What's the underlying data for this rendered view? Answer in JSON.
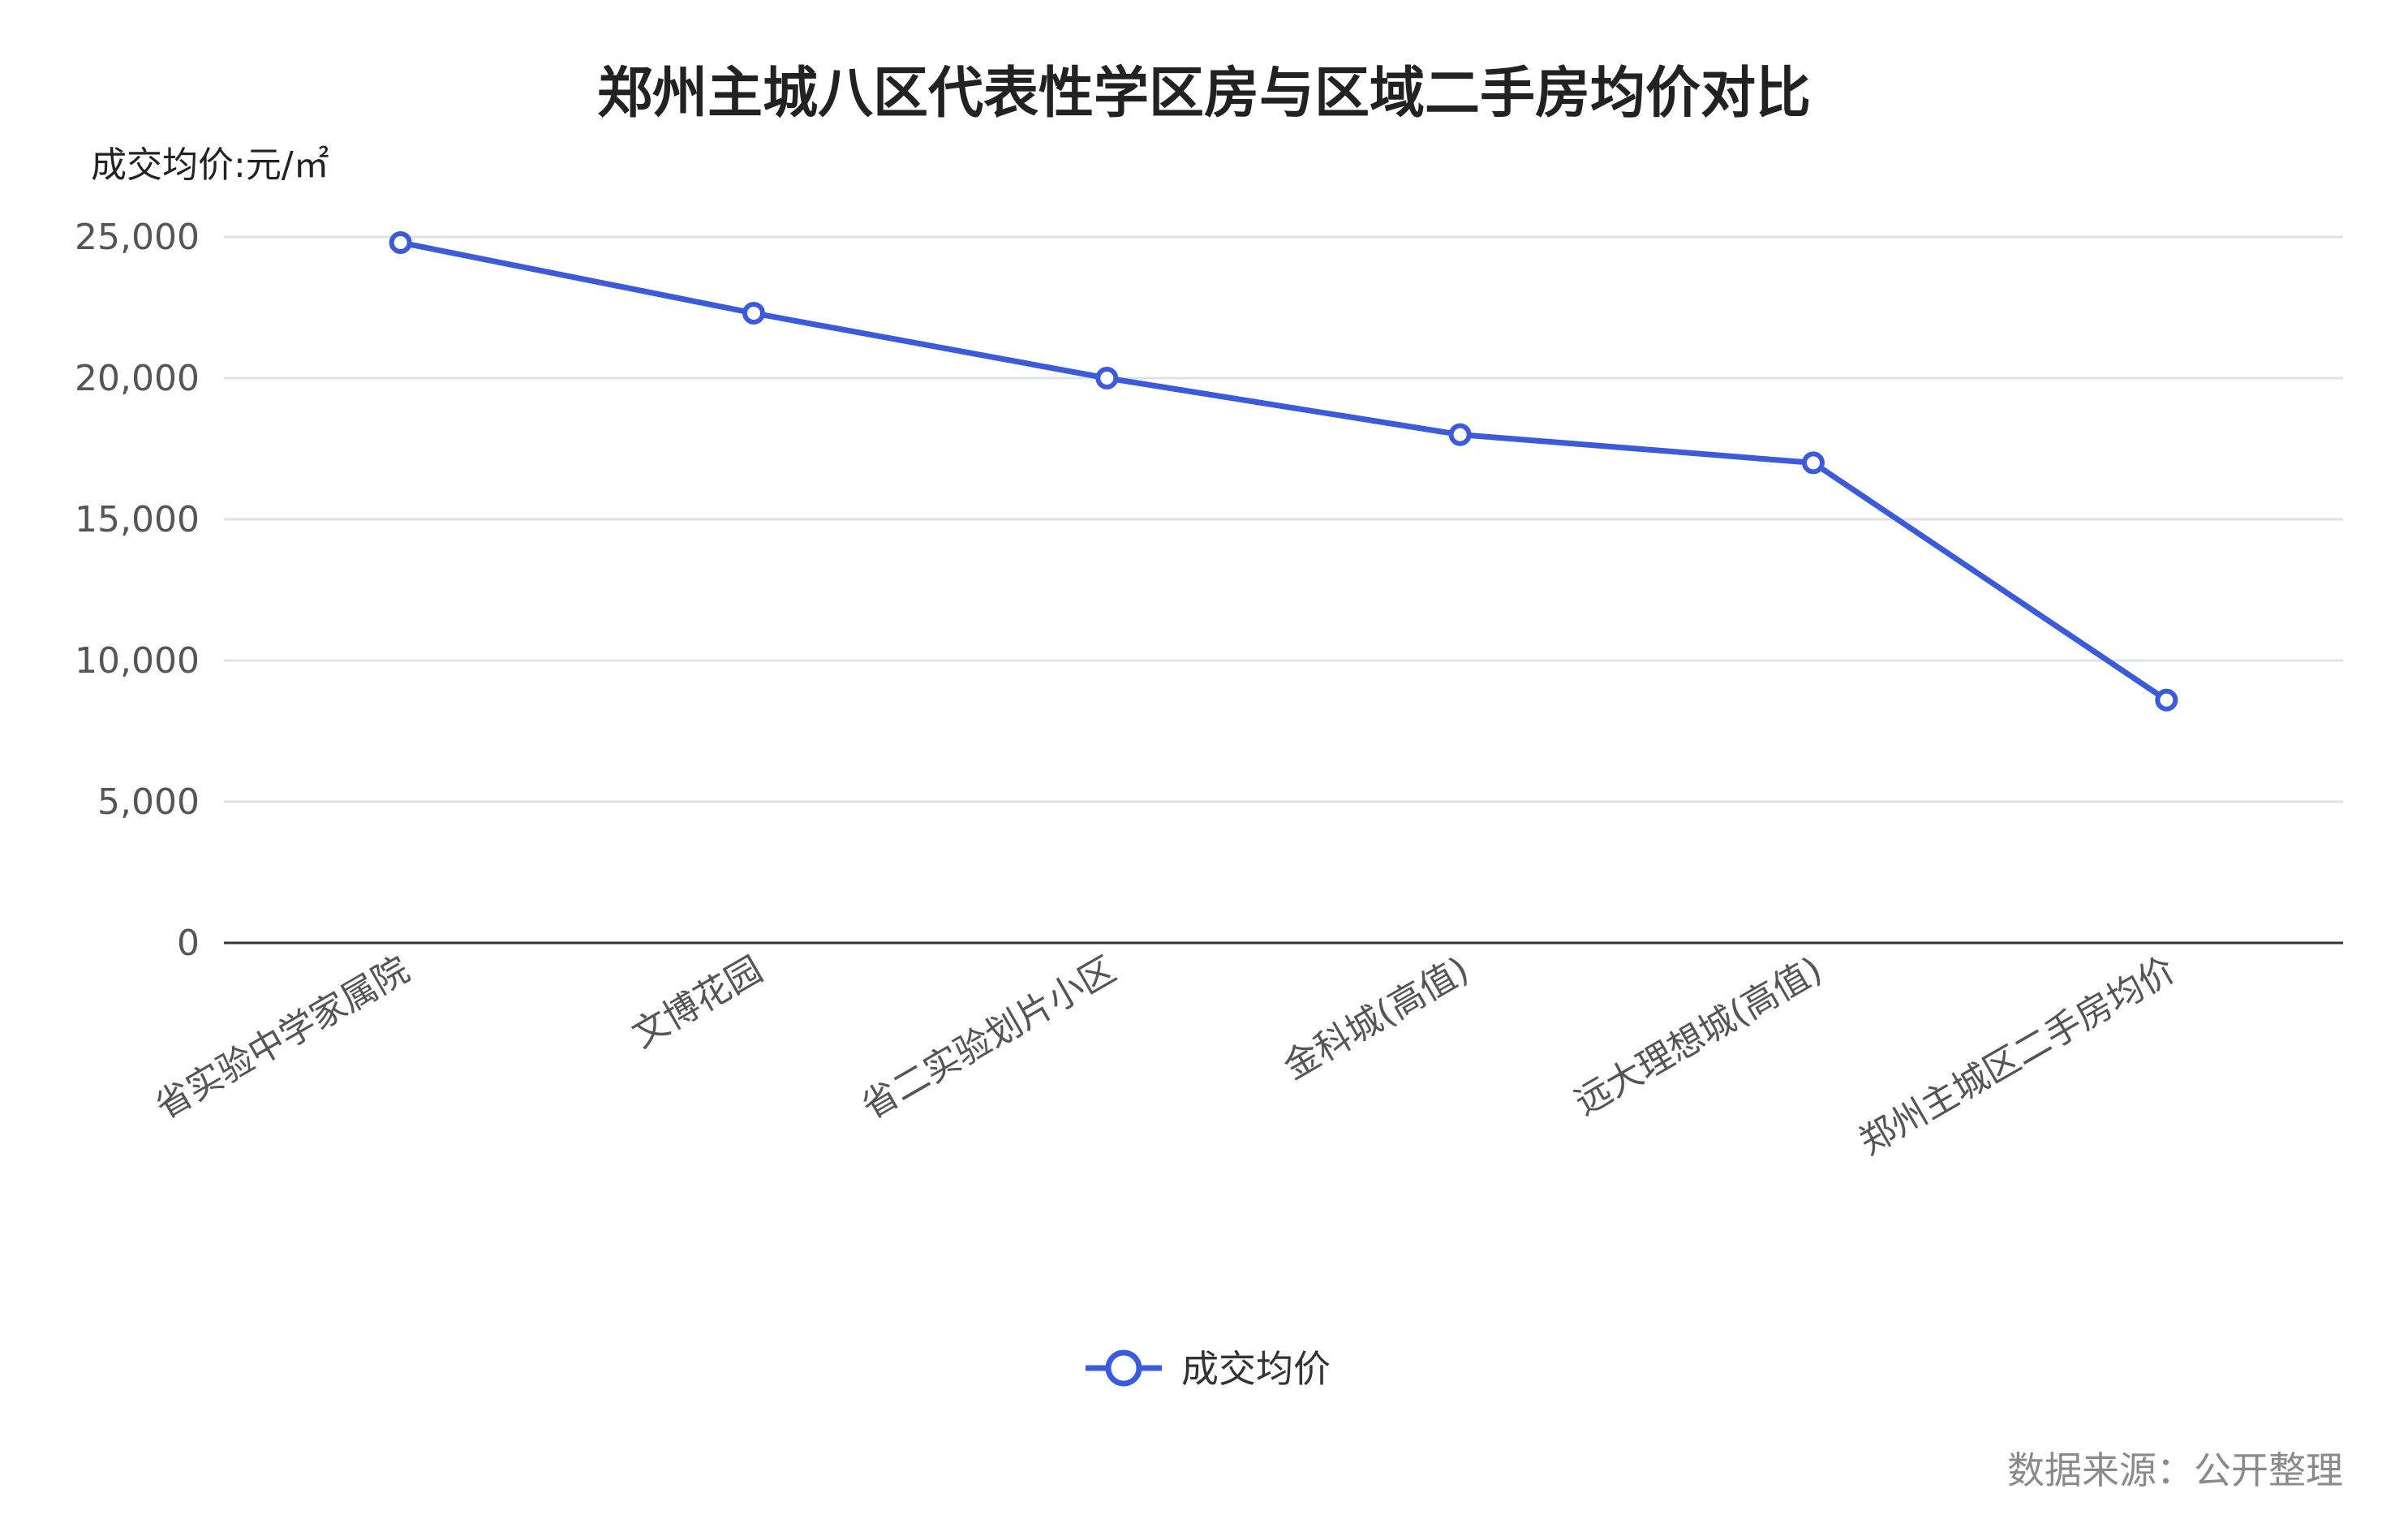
{
  "chart_data": {
    "type": "line",
    "title": "郑州主城八区代表性学区房与区域二手房均价对比",
    "ylabel": "成交均价:元/㎡",
    "xlabel": "",
    "categories": [
      "省实验中学家属院",
      "文博花园",
      "省二实验划片小区",
      "金科城(高值)",
      "远大理想城(高值)",
      "郑州主城区二手房均价"
    ],
    "series": [
      {
        "name": "成交均价",
        "values": [
          24800,
          22300,
          20000,
          18000,
          17000,
          8600
        ],
        "color": "#3b5bdb"
      }
    ],
    "ylim": [
      0,
      25000
    ],
    "yticks": [
      0,
      5000,
      10000,
      15000,
      20000,
      25000
    ],
    "ytick_labels": [
      "0",
      "5,000",
      "10,000",
      "15,000",
      "20,000",
      "25,000"
    ],
    "grid": true,
    "legend_position": "bottom-center",
    "marker": "hollow-circle"
  },
  "source_note": "数据来源：公开整理",
  "colors": {
    "line": "#3b5bdb",
    "grid": "#dde1ea",
    "axis": "#333333",
    "marker_fill": "#ffffff"
  }
}
